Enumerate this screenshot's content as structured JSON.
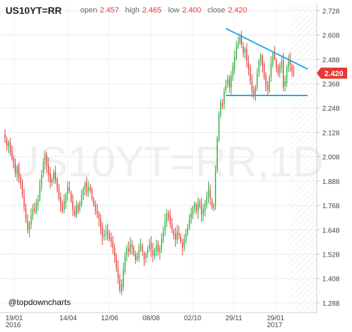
{
  "header": {
    "symbol": "US10YT=RR",
    "open_label": "open",
    "open_value": "2.457",
    "high_label": "high",
    "high_value": "2.465",
    "low_label": "low",
    "low_value": "2.400",
    "close_label": "close",
    "close_value": "2.420"
  },
  "watermark": "US10YT=RR,1D",
  "credit": "@topdowncharts",
  "colors": {
    "up": "#2eaa3c",
    "down": "#e53935",
    "trendline": "#29a8e0",
    "price_tag": "#e53935"
  },
  "chart_data": {
    "type": "candlestick",
    "price_tag": "2.420",
    "y_ticks": [
      "2.728",
      "2.608",
      "2.488",
      "2.368",
      "2.248",
      "2.128",
      "2.008",
      "1.888",
      "1.768",
      "1.648",
      "1.528",
      "1.408",
      "1.288"
    ],
    "ylim": [
      1.24,
      2.76
    ],
    "x_ticks": [
      {
        "label": "19/01",
        "sub": "2016"
      },
      {
        "label": "14/04",
        "sub": ""
      },
      {
        "label": "12/06",
        "sub": ""
      },
      {
        "label": "08/08",
        "sub": ""
      },
      {
        "label": "02/10",
        "sub": ""
      },
      {
        "label": "29/11",
        "sub": ""
      },
      {
        "label": "29/01",
        "sub": "2017"
      }
    ],
    "closes": [
      2.1,
      2.06,
      2.08,
      2.03,
      2.0,
      1.98,
      1.93,
      1.96,
      1.9,
      1.87,
      1.82,
      1.76,
      1.7,
      1.65,
      1.68,
      1.72,
      1.75,
      1.74,
      1.78,
      1.8,
      1.86,
      1.92,
      1.98,
      2.02,
      1.96,
      1.92,
      1.88,
      1.9,
      1.93,
      1.89,
      1.85,
      1.8,
      1.77,
      1.74,
      1.79,
      1.82,
      1.86,
      1.84,
      1.79,
      1.75,
      1.72,
      1.77,
      1.74,
      1.78,
      1.82,
      1.85,
      1.88,
      1.83,
      1.86,
      1.84,
      1.8,
      1.77,
      1.74,
      1.73,
      1.7,
      1.66,
      1.61,
      1.63,
      1.64,
      1.62,
      1.6,
      1.59,
      1.56,
      1.52,
      1.46,
      1.41,
      1.35,
      1.38,
      1.45,
      1.52,
      1.56,
      1.54,
      1.58,
      1.56,
      1.53,
      1.5,
      1.52,
      1.55,
      1.57,
      1.54,
      1.5,
      1.53,
      1.55,
      1.58,
      1.55,
      1.52,
      1.55,
      1.57,
      1.54,
      1.56,
      1.6,
      1.64,
      1.69,
      1.73,
      1.71,
      1.68,
      1.65,
      1.62,
      1.6,
      1.64,
      1.62,
      1.59,
      1.56,
      1.6,
      1.63,
      1.66,
      1.7,
      1.73,
      1.76,
      1.78,
      1.74,
      1.78,
      1.76,
      1.72,
      1.75,
      1.78,
      1.81,
      1.85,
      1.8,
      1.76,
      1.77,
      1.94,
      2.1,
      2.22,
      2.28,
      2.26,
      2.33,
      2.36,
      2.39,
      2.35,
      2.41,
      2.45,
      2.5,
      2.55,
      2.57,
      2.6,
      2.56,
      2.52,
      2.54,
      2.48,
      2.44,
      2.38,
      2.33,
      2.31,
      2.35,
      2.42,
      2.48,
      2.51,
      2.46,
      2.4,
      2.36,
      2.34,
      2.4,
      2.47,
      2.52,
      2.49,
      2.45,
      2.42,
      2.46,
      2.48,
      2.35,
      2.38,
      2.45,
      2.48,
      2.46,
      2.43,
      2.42
    ],
    "trendlines": [
      {
        "from": [
          127,
          2.64
        ],
        "to": [
          174,
          2.44
        ]
      },
      {
        "from": [
          127,
          2.31
        ],
        "to": [
          174,
          2.31
        ]
      }
    ]
  }
}
